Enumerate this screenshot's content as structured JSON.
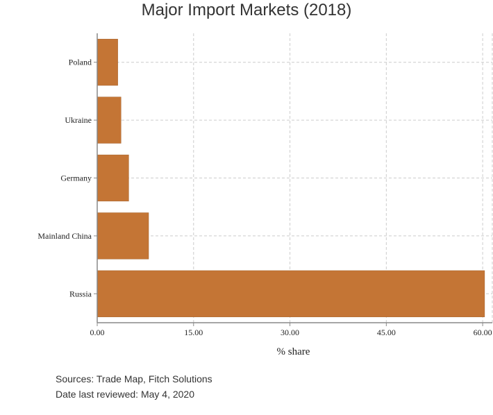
{
  "chart_data": {
    "type": "bar",
    "orientation": "horizontal",
    "title": "Major Import Markets (2018)",
    "xlabel": "% share",
    "ylabel": "",
    "categories": [
      "Poland",
      "Ukraine",
      "Germany",
      "Mainland China",
      "Russia"
    ],
    "values": [
      3.2,
      3.7,
      4.9,
      8.0,
      60.3
    ],
    "xlim": [
      0,
      61.5
    ],
    "xticks": [
      0,
      15,
      30,
      45,
      60
    ],
    "xtick_labels": [
      "0.00",
      "15.00",
      "30.00",
      "45.00",
      "60.00"
    ],
    "grid": true,
    "bar_color": "#c47535"
  },
  "footer": {
    "sources": "Sources: Trade Map, Fitch Solutions",
    "reviewed": "Date last reviewed: May 4, 2020"
  }
}
